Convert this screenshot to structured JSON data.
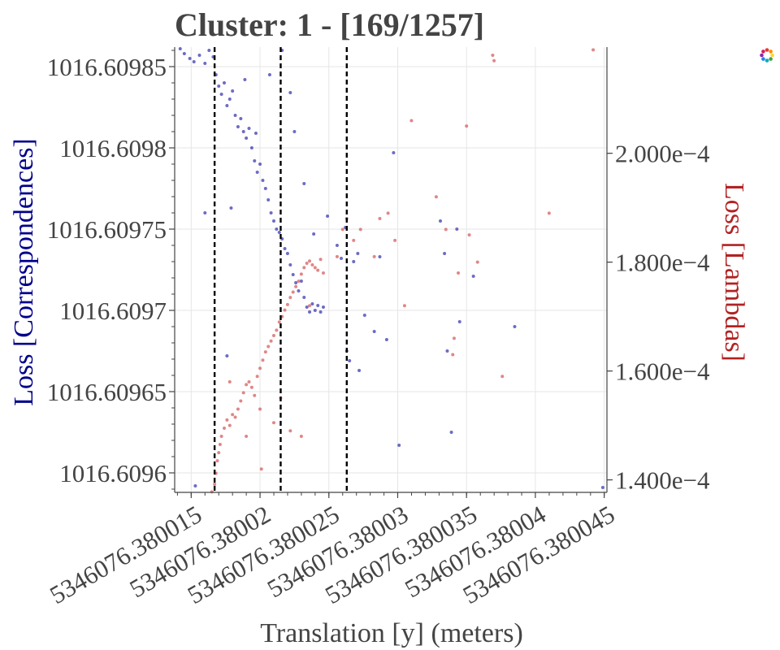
{
  "chart_data": {
    "type": "scatter",
    "title": "Cluster: 1 - [169/1257]",
    "xlabel": "Translation [y] (meters)",
    "ylabel_left": "Loss [Correspondences]",
    "ylabel_right": "Loss [Lambdas]",
    "x_ticks": [
      "5346076.380015",
      "5346076.38002",
      "5346076.380025",
      "5346076.38003",
      "5346076.380035",
      "5346076.38004",
      "5346076.380045"
    ],
    "x_tick_values": [
      5346076.380015,
      5346076.38002,
      5346076.380025,
      5346076.38003,
      5346076.380035,
      5346076.38004,
      5346076.380045
    ],
    "y_left_ticks": [
      "1016.6096",
      "1016.60965",
      "1016.6097",
      "1016.60975",
      "1016.6098",
      "1016.60985"
    ],
    "y_left_tick_values": [
      1016.6096,
      1016.60965,
      1016.6097,
      1016.60975,
      1016.6098,
      1016.60985
    ],
    "y_right_ticks": [
      "1.400e−4",
      "1.600e−4",
      "1.800e−4",
      "2.000e−4"
    ],
    "y_right_tick_values": [
      0.00014,
      0.00016,
      0.00018,
      0.0002
    ],
    "xlim": [
      5346076.3800138,
      5346076.3800452
    ],
    "ylim_left": [
      1016.609588,
      1016.609862
    ],
    "ylim_right": [
      0.0001377,
      0.0002195
    ],
    "vlines": [
      5346076.3800167,
      5346076.3800215,
      5346076.3800263
    ],
    "grid": true,
    "series": [
      {
        "axis": "left",
        "color": "#3b3bb0",
        "points": [
          [
            5346076.3800142,
            1016.609861
          ],
          [
            5346076.3800145,
            1016.609858
          ],
          [
            5346076.3800149,
            1016.609855
          ],
          [
            5346076.3800152,
            1016.609853
          ],
          [
            5346076.3800156,
            1016.609857
          ],
          [
            5346076.380016,
            1016.609852
          ],
          [
            5346076.3800163,
            1016.60986
          ],
          [
            5346076.3800166,
            1016.609856
          ],
          [
            5346076.3800168,
            1016.609845
          ],
          [
            5346076.380017,
            1016.609838
          ],
          [
            5346076.3800172,
            1016.609833
          ],
          [
            5346076.3800174,
            1016.60984
          ],
          [
            5346076.3800176,
            1016.609826
          ],
          [
            5346076.3800178,
            1016.60983
          ],
          [
            5346076.380018,
            1016.609835
          ],
          [
            5346076.3800182,
            1016.60982
          ],
          [
            5346076.3800184,
            1016.609813
          ],
          [
            5346076.3800186,
            1016.609818
          ],
          [
            5346076.3800188,
            1016.60981
          ],
          [
            5346076.380019,
            1016.609806
          ],
          [
            5346076.3800192,
            1016.609812
          ],
          [
            5346076.3800194,
            1016.6098
          ],
          [
            5346076.3800196,
            1016.609792
          ],
          [
            5346076.3800198,
            1016.609785
          ],
          [
            5346076.38002,
            1016.60979
          ],
          [
            5346076.3800202,
            1016.60978
          ],
          [
            5346076.3800204,
            1016.609775
          ],
          [
            5346076.3800206,
            1016.609768
          ],
          [
            5346076.3800208,
            1016.60976
          ],
          [
            5346076.380021,
            1016.609755
          ],
          [
            5346076.3800212,
            1016.60975
          ],
          [
            5346076.3800214,
            1016.609748
          ],
          [
            5346076.3800216,
            1016.609744
          ],
          [
            5346076.3800218,
            1016.609738
          ],
          [
            5346076.380022,
            1016.609735
          ],
          [
            5346076.3800222,
            1016.609728
          ],
          [
            5346076.3800224,
            1016.609722
          ],
          [
            5346076.3800226,
            1016.609717
          ],
          [
            5346076.3800228,
            1016.609712
          ],
          [
            5346076.380023,
            1016.609718
          ],
          [
            5346076.3800232,
            1016.609708
          ],
          [
            5346076.3800234,
            1016.609702
          ],
          [
            5346076.3800236,
            1016.609699
          ],
          [
            5346076.3800238,
            1016.609704
          ],
          [
            5346076.380024,
            1016.6097
          ],
          [
            5346076.3800242,
            1016.609703
          ],
          [
            5346076.3800244,
            1016.609699
          ],
          [
            5346076.3800246,
            1016.609702
          ],
          [
            5346076.380016,
            1016.60976
          ],
          [
            5346076.3800179,
            1016.609763
          ],
          [
            5346076.3800189,
            1016.609842
          ],
          [
            5346076.3800197,
            1016.609809
          ],
          [
            5346076.3800207,
            1016.609845
          ],
          [
            5346076.3800216,
            1016.60986
          ],
          [
            5346076.3800222,
            1016.609834
          ],
          [
            5346076.3800225,
            1016.60981
          ],
          [
            5346076.3800232,
            1016.609778
          ],
          [
            5346076.3800239,
            1016.609747
          ],
          [
            5346076.3800249,
            1016.609758
          ],
          [
            5346076.3800256,
            1016.60974
          ],
          [
            5346076.3800259,
            1016.609732
          ],
          [
            5346076.3800262,
            1016.609751
          ],
          [
            5346076.3800268,
            1016.60973
          ],
          [
            5346076.3800271,
            1016.609735
          ],
          [
            5346076.3800265,
            1016.609669
          ],
          [
            5346076.3800263,
            1016.609675
          ],
          [
            5346076.3800276,
            1016.609697
          ],
          [
            5346076.3800283,
            1016.609687
          ],
          [
            5346076.3800287,
            1016.609733
          ],
          [
            5346076.3800292,
            1016.609682
          ],
          [
            5346076.3800297,
            1016.609797
          ],
          [
            5346076.3800301,
            1016.609617
          ],
          [
            5346076.3800331,
            1016.609755
          ],
          [
            5346076.3800334,
            1016.609735
          ],
          [
            5346076.3800336,
            1016.609675
          ],
          [
            5346076.3800339,
            1016.609625
          ],
          [
            5346076.3800343,
            1016.60975
          ],
          [
            5346076.3800345,
            1016.609693
          ],
          [
            5346076.3800355,
            1016.609721
          ],
          [
            5346076.3800385,
            1016.60969
          ],
          [
            5346076.3800449,
            1016.609591
          ],
          [
            5346076.3800153,
            1016.609592
          ],
          [
            5346076.3800176,
            1016.609672
          ],
          [
            5346076.3800272,
            1016.609663
          ]
        ]
      },
      {
        "axis": "right",
        "color": "#d45f5f",
        "points": [
          [
            5346076.3800165,
            0.0001378
          ],
          [
            5346076.3800167,
            0.0001392
          ],
          [
            5346076.3800168,
            0.0001412
          ],
          [
            5346076.3800169,
            0.0001435
          ],
          [
            5346076.380017,
            0.000145
          ],
          [
            5346076.3800171,
            0.0001465
          ],
          [
            5346076.3800172,
            0.000148
          ],
          [
            5346076.3800174,
            0.0001495
          ],
          [
            5346076.3800176,
            0.000151
          ],
          [
            5346076.3800178,
            0.00015
          ],
          [
            5346076.380018,
            0.000152
          ],
          [
            5346076.3800182,
            0.0001515
          ],
          [
            5346076.3800184,
            0.000153
          ],
          [
            5346076.3800186,
            0.0001545
          ],
          [
            5346076.3800188,
            0.000156
          ],
          [
            5346076.380019,
            0.0001575
          ],
          [
            5346076.3800192,
            0.000158
          ],
          [
            5346076.3800194,
            0.000157
          ],
          [
            5346076.3800196,
            0.0001555
          ],
          [
            5346076.3800198,
            0.000159
          ],
          [
            5346076.38002,
            0.0001605
          ],
          [
            5346076.3800202,
            0.000162
          ],
          [
            5346076.3800204,
            0.0001635
          ],
          [
            5346076.3800206,
            0.0001645
          ],
          [
            5346076.3800208,
            0.0001655
          ],
          [
            5346076.380021,
            0.0001665
          ],
          [
            5346076.3800212,
            0.0001675
          ],
          [
            5346076.3800214,
            0.000169
          ],
          [
            5346076.3800216,
            0.00017
          ],
          [
            5346076.3800218,
            0.0001712
          ],
          [
            5346076.380022,
            0.0001722
          ],
          [
            5346076.3800222,
            0.0001735
          ],
          [
            5346076.3800224,
            0.0001745
          ],
          [
            5346076.3800226,
            0.0001755
          ],
          [
            5346076.3800228,
            0.0001765
          ],
          [
            5346076.380023,
            0.0001778
          ],
          [
            5346076.3800232,
            0.000179
          ],
          [
            5346076.3800234,
            0.0001798
          ],
          [
            5346076.3800236,
            0.0001802
          ],
          [
            5346076.3800238,
            0.0001795
          ],
          [
            5346076.380024,
            0.000179
          ],
          [
            5346076.3800242,
            0.0001785
          ],
          [
            5346076.3800244,
            0.0001805
          ],
          [
            5346076.380019,
            0.000148
          ],
          [
            5346076.38002,
            0.000153
          ],
          [
            5346076.380021,
            0.0001505
          ],
          [
            5346076.3800215,
            0.000155
          ],
          [
            5346076.3800222,
            0.000149
          ],
          [
            5346076.380023,
            0.000148
          ],
          [
            5346076.3800236,
            0.000172
          ],
          [
            5346076.3800246,
            0.000178
          ],
          [
            5346076.3800256,
            0.000181
          ],
          [
            5346076.380026,
            0.000186
          ],
          [
            5346076.3800263,
            0.000188
          ],
          [
            5346076.3800273,
            0.000186
          ],
          [
            5346076.3800283,
            0.000181
          ],
          [
            5346076.3800287,
            0.000188
          ],
          [
            5346076.3800293,
            0.000189
          ],
          [
            5346076.3800298,
            0.000184
          ],
          [
            5346076.3800305,
            0.000172
          ],
          [
            5346076.380031,
            0.000206
          ],
          [
            5346076.3800328,
            0.000192
          ],
          [
            5346076.3800335,
            0.000186
          ],
          [
            5346076.380034,
            0.000163
          ],
          [
            5346076.3800341,
            0.000166
          ],
          [
            5346076.3800344,
            0.000178
          ],
          [
            5346076.3800352,
            0.000185
          ],
          [
            5346076.3800358,
            0.00018
          ],
          [
            5346076.380037,
            0.000217
          ],
          [
            5346076.3800369,
            0.000218
          ],
          [
            5346076.380035,
            0.000205
          ],
          [
            5346076.3800376,
            0.000159
          ],
          [
            5346076.380041,
            0.000189
          ],
          [
            5346076.3800442,
            0.000219
          ],
          [
            5346076.3800268,
            0.000184
          ],
          [
            5346076.3800201,
            0.000142
          ],
          [
            5346076.3800178,
            0.000158
          ]
        ]
      }
    ]
  }
}
